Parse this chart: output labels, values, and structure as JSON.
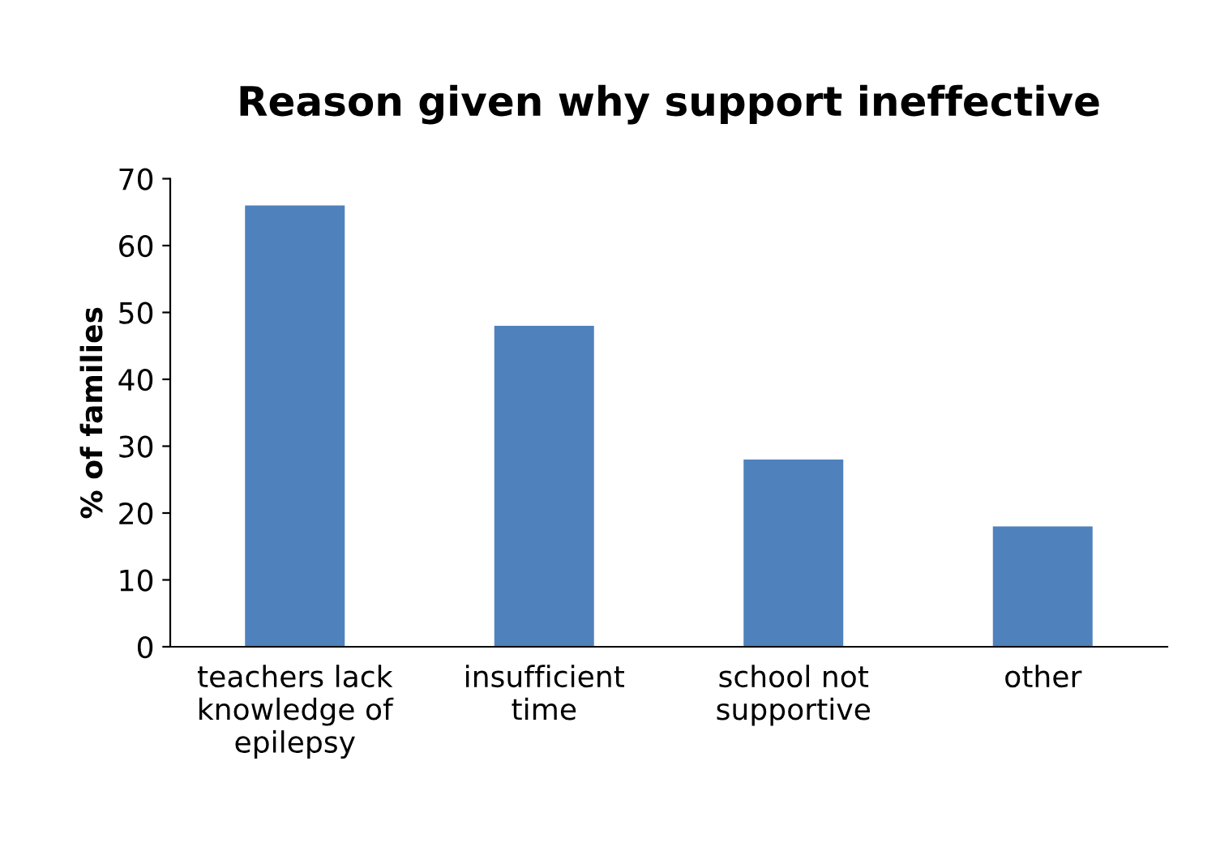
{
  "chart_data": {
    "type": "bar",
    "title": "Reason given why support ineffective",
    "ylabel": "% of families",
    "categories": [
      "teachers lack\nknowledge of\nepilepsy",
      "insufficient\ntime",
      "school not\nsupportive",
      "other"
    ],
    "values": [
      66,
      48,
      28,
      18
    ],
    "color": "#4f81bd",
    "ylim": [
      0,
      70
    ],
    "yticks": [
      0,
      10,
      20,
      30,
      40,
      50,
      60,
      70
    ],
    "grid": false,
    "legend": false
  }
}
